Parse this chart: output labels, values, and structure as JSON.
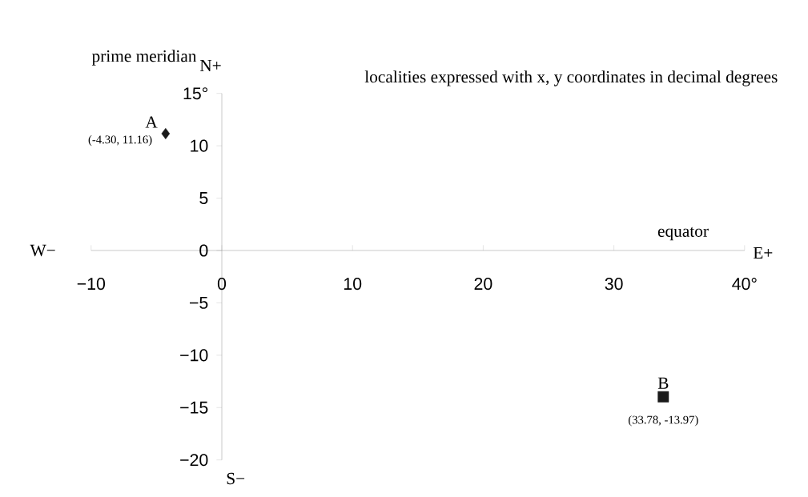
{
  "chart_data": {
    "type": "scatter",
    "series": [
      {
        "name": "A",
        "color": "#1a1a1a",
        "marker": "diamond",
        "x": [
          -4.3
        ],
        "values": [
          11.16
        ],
        "value_labels": [
          "(-4.30, 11.16)"
        ]
      },
      {
        "name": "B",
        "color": "#1a1a1a",
        "marker": "square",
        "x": [
          33.78
        ],
        "values": [
          -13.97
        ],
        "value_labels": [
          "(33.78, -13.97)"
        ]
      }
    ],
    "xlim": [
      -10,
      40
    ],
    "ylim": [
      -20,
      15
    ],
    "xticks": [
      {
        "value": -10,
        "label": "−10"
      },
      0,
      10,
      20,
      30,
      {
        "value": 40,
        "label": "40°"
      }
    ],
    "yticks": [
      {
        "value": -20,
        "label": "−20"
      },
      {
        "value": -15,
        "label": "−15"
      },
      {
        "value": -10,
        "label": "−10"
      },
      {
        "value": -5,
        "label": "−5"
      },
      0,
      5,
      10,
      {
        "value": 15,
        "label": "15°"
      }
    ],
    "grid": false,
    "annotations": [
      "prime meridian",
      "N+",
      "S−",
      "W−",
      "E+",
      "equator",
      "localities expressed with x, y coordinates in decimal degrees"
    ]
  }
}
